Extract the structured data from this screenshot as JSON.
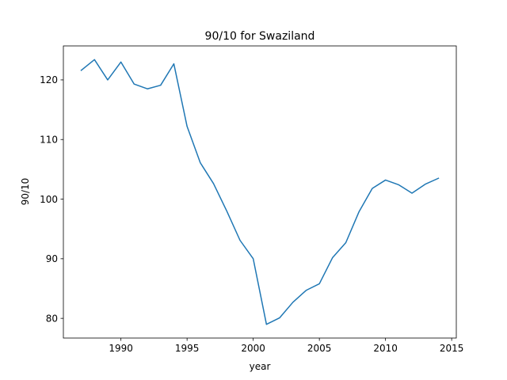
{
  "chart_data": {
    "type": "line",
    "title": "90/10 for Swaziland",
    "xlabel": "year",
    "ylabel": "90/10",
    "xlim": [
      1985.65,
      2015.35
    ],
    "ylim": [
      76.7,
      125.7
    ],
    "xticks": [
      1990,
      1995,
      2000,
      2005,
      2010,
      2015
    ],
    "yticks": [
      80,
      90,
      100,
      110,
      120
    ],
    "grid": false,
    "series": [
      {
        "color": "#1f77b4",
        "x": [
          1987,
          1988,
          1989,
          1990,
          1991,
          1992,
          1993,
          1994,
          1995,
          1996,
          1997,
          1998,
          1999,
          2000,
          2001,
          2002,
          2003,
          2004,
          2005,
          2006,
          2007,
          2008,
          2009,
          2010,
          2011,
          2012,
          2013,
          2014
        ],
        "y": [
          121.6,
          123.4,
          120.0,
          123.0,
          119.3,
          118.5,
          119.1,
          122.7,
          112.2,
          106.1,
          102.6,
          98.0,
          93.1,
          90.0,
          79.0,
          80.1,
          82.7,
          84.7,
          85.8,
          90.2,
          92.7,
          97.9,
          101.8,
          103.2,
          102.4,
          101.0,
          102.5,
          103.5
        ]
      }
    ]
  }
}
